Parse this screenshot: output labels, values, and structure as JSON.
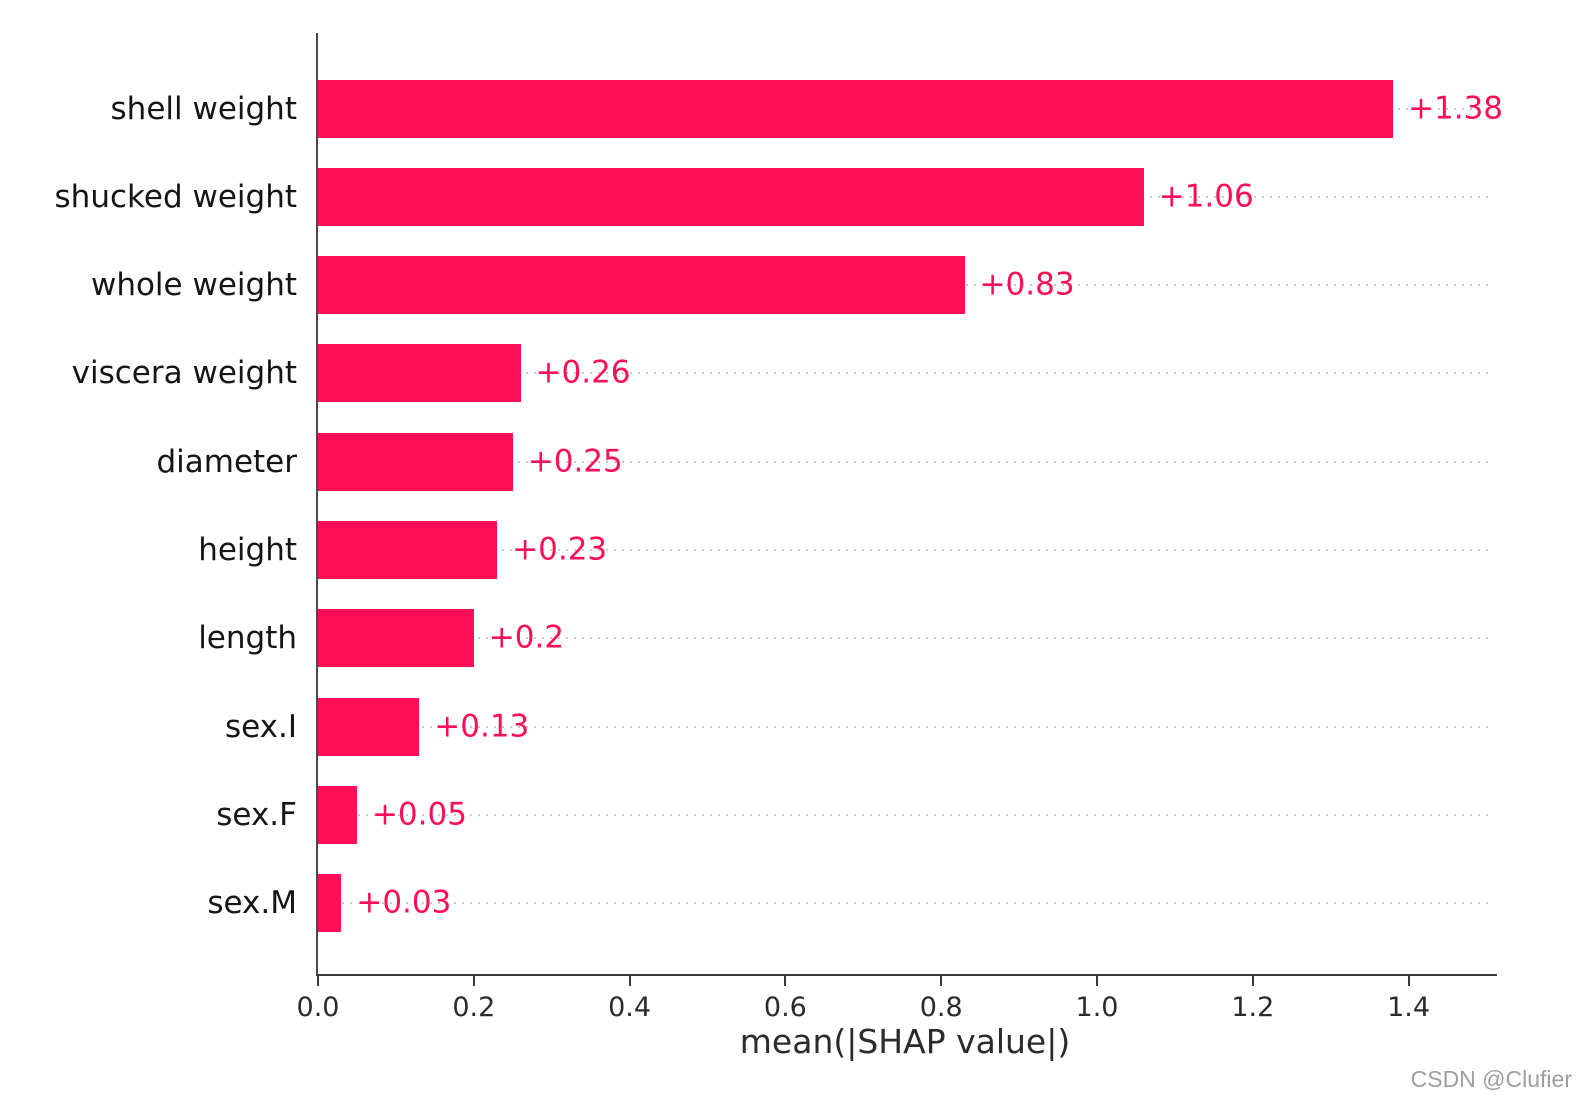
{
  "chart_data": {
    "type": "bar",
    "orientation": "horizontal",
    "title": "",
    "xlabel": "mean(|SHAP value|)",
    "ylabel": "",
    "categories": [
      "shell weight",
      "shucked weight",
      "whole weight",
      "viscera weight",
      "diameter",
      "height",
      "length",
      "sex.I",
      "sex.F",
      "sex.M"
    ],
    "values": [
      1.38,
      1.06,
      0.83,
      0.26,
      0.25,
      0.23,
      0.2,
      0.13,
      0.05,
      0.03
    ],
    "value_labels": [
      "+1.38",
      "+1.06",
      "+0.83",
      "+0.26",
      "+0.25",
      "+0.23",
      "+0.2",
      "+0.13",
      "+0.05",
      "+0.03"
    ],
    "xlim": [
      0,
      1.51
    ],
    "xtick_values": [
      0.0,
      0.2,
      0.4,
      0.6,
      0.8,
      1.0,
      1.2,
      1.4
    ],
    "xtick_labels": [
      "0.0",
      "0.2",
      "0.4",
      "0.6",
      "0.8",
      "1.0",
      "1.2",
      "1.4"
    ],
    "grid": "horizontal dotted line at each category row",
    "legend": "none",
    "bar_color": "#ff0d57",
    "value_label_color": "#ff0d57"
  },
  "colors": {
    "background": "#ffffff",
    "axis": "#3a3a3a",
    "gridline": "#c9c9c9",
    "category_text": "#151515",
    "tick_text": "#2b2b2b"
  },
  "watermark": "CSDN @Clufier"
}
